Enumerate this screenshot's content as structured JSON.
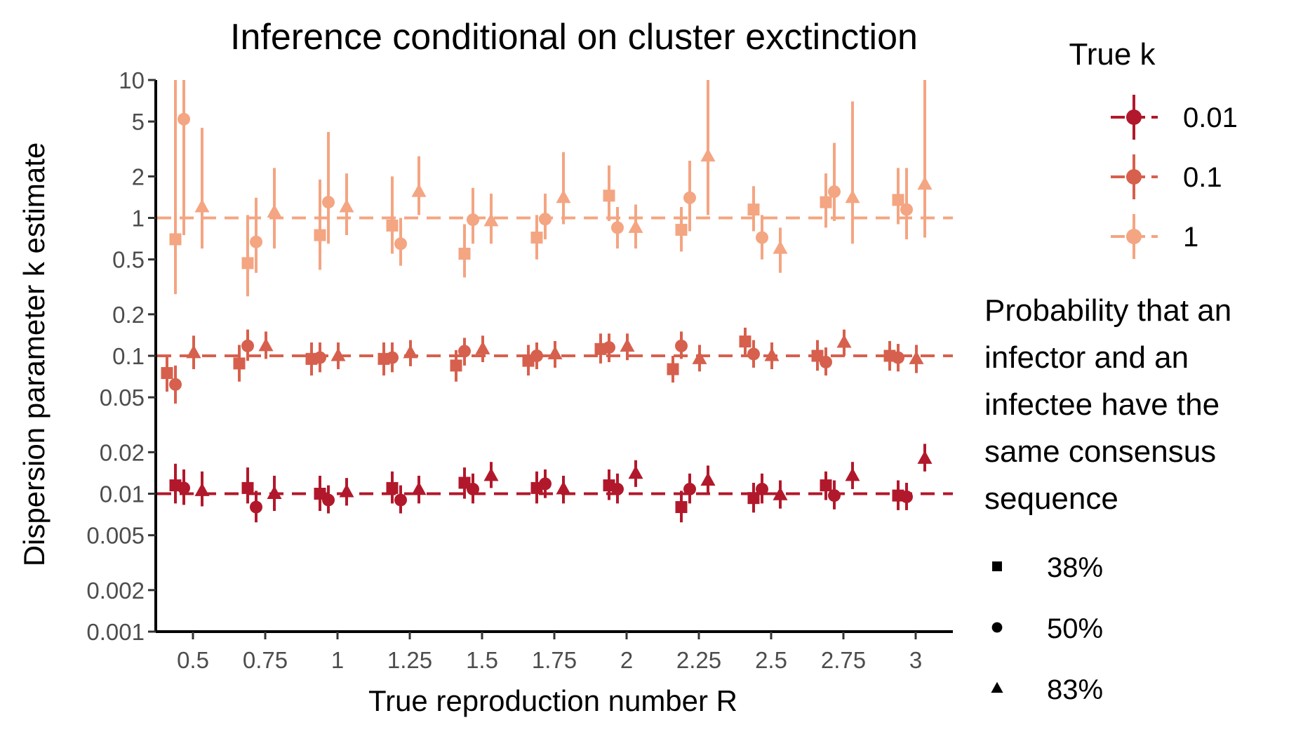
{
  "chart_data": {
    "type": "scatter",
    "title": "Inference conditional on cluster exctinction",
    "xlabel": "True reproduction number R",
    "ylabel": "Dispersion parameter k estimate",
    "y_scale": "log",
    "ylim": [
      0.001,
      10
    ],
    "y_ticks": [
      0.001,
      0.002,
      0.005,
      0.01,
      0.02,
      0.05,
      0.1,
      0.2,
      0.5,
      1,
      2,
      5,
      10
    ],
    "y_tick_labels": [
      "0.001",
      "0.002",
      "0.005",
      "0.01",
      "0.02",
      "0.05",
      "0.1",
      "0.2",
      "0.5",
      "1",
      "2",
      "5",
      "10"
    ],
    "x_ticks": [
      0.5,
      0.75,
      1,
      1.25,
      1.5,
      1.75,
      2,
      2.25,
      2.5,
      2.75,
      3
    ],
    "x_tick_labels": [
      "0.5",
      "0.75",
      "1",
      "1.25",
      "1.5",
      "1.75",
      "2",
      "2.25",
      "2.5",
      "2.75",
      "3"
    ],
    "grid": false,
    "reference_lines": [
      0.01,
      0.1,
      1
    ],
    "legend_color": {
      "title": "True k",
      "placement": "right",
      "entries": [
        {
          "label": "0.01",
          "color": "#b2182b"
        },
        {
          "label": "0.1",
          "color": "#d6604d"
        },
        {
          "label": "1",
          "color": "#f4a582"
        }
      ]
    },
    "legend_shape": {
      "title_lines": [
        "Probability that an",
        "infector and an",
        "infectee have the",
        "same consensus",
        "sequence"
      ],
      "placement": "right",
      "entries": [
        {
          "label": "38%",
          "shape": "square"
        },
        {
          "label": "50%",
          "shape": "circle"
        },
        {
          "label": "83%",
          "shape": "triangle"
        }
      ]
    },
    "series": [
      {
        "true_k": 0.01,
        "color": "#b2182b",
        "points": [
          {
            "R": 0.5,
            "p": "38%",
            "est": 0.0115,
            "lo": 0.0085,
            "hi": 0.0165
          },
          {
            "R": 0.5,
            "p": "50%",
            "est": 0.011,
            "lo": 0.0083,
            "hi": 0.015
          },
          {
            "R": 0.5,
            "p": "83%",
            "est": 0.0105,
            "lo": 0.0081,
            "hi": 0.0145
          },
          {
            "R": 0.75,
            "p": "38%",
            "est": 0.011,
            "lo": 0.0085,
            "hi": 0.0155
          },
          {
            "R": 0.75,
            "p": "50%",
            "est": 0.008,
            "lo": 0.0062,
            "hi": 0.0105
          },
          {
            "R": 0.75,
            "p": "83%",
            "est": 0.01,
            "lo": 0.0075,
            "hi": 0.0135
          },
          {
            "R": 1,
            "p": "38%",
            "est": 0.01,
            "lo": 0.0075,
            "hi": 0.0135
          },
          {
            "R": 1,
            "p": "50%",
            "est": 0.009,
            "lo": 0.0072,
            "hi": 0.0115
          },
          {
            "R": 1,
            "p": "83%",
            "est": 0.0103,
            "lo": 0.0082,
            "hi": 0.013
          },
          {
            "R": 1.25,
            "p": "38%",
            "est": 0.011,
            "lo": 0.0085,
            "hi": 0.0145
          },
          {
            "R": 1.25,
            "p": "50%",
            "est": 0.009,
            "lo": 0.0072,
            "hi": 0.0115
          },
          {
            "R": 1.25,
            "p": "83%",
            "est": 0.0107,
            "lo": 0.0085,
            "hi": 0.0135
          },
          {
            "R": 1.5,
            "p": "38%",
            "est": 0.012,
            "lo": 0.0092,
            "hi": 0.0155
          },
          {
            "R": 1.5,
            "p": "50%",
            "est": 0.0108,
            "lo": 0.0085,
            "hi": 0.014
          },
          {
            "R": 1.5,
            "p": "83%",
            "est": 0.0135,
            "lo": 0.011,
            "hi": 0.017
          },
          {
            "R": 1.75,
            "p": "38%",
            "est": 0.011,
            "lo": 0.0085,
            "hi": 0.0145
          },
          {
            "R": 1.75,
            "p": "50%",
            "est": 0.0118,
            "lo": 0.0093,
            "hi": 0.015
          },
          {
            "R": 1.75,
            "p": "83%",
            "est": 0.0108,
            "lo": 0.0085,
            "hi": 0.0135
          },
          {
            "R": 2,
            "p": "38%",
            "est": 0.0115,
            "lo": 0.009,
            "hi": 0.015
          },
          {
            "R": 2,
            "p": "50%",
            "est": 0.0108,
            "lo": 0.0085,
            "hi": 0.014
          },
          {
            "R": 2,
            "p": "83%",
            "est": 0.014,
            "lo": 0.0112,
            "hi": 0.0175
          },
          {
            "R": 2.25,
            "p": "38%",
            "est": 0.008,
            "lo": 0.0062,
            "hi": 0.0105
          },
          {
            "R": 2.25,
            "p": "50%",
            "est": 0.0108,
            "lo": 0.0085,
            "hi": 0.014
          },
          {
            "R": 2.25,
            "p": "83%",
            "est": 0.0125,
            "lo": 0.01,
            "hi": 0.016
          },
          {
            "R": 2.5,
            "p": "38%",
            "est": 0.0093,
            "lo": 0.0073,
            "hi": 0.012
          },
          {
            "R": 2.5,
            "p": "50%",
            "est": 0.0108,
            "lo": 0.0085,
            "hi": 0.014
          },
          {
            "R": 2.5,
            "p": "83%",
            "est": 0.0098,
            "lo": 0.0078,
            "hi": 0.0125
          },
          {
            "R": 2.75,
            "p": "38%",
            "est": 0.0115,
            "lo": 0.009,
            "hi": 0.0145
          },
          {
            "R": 2.75,
            "p": "50%",
            "est": 0.0097,
            "lo": 0.0077,
            "hi": 0.0125
          },
          {
            "R": 2.75,
            "p": "83%",
            "est": 0.0135,
            "lo": 0.0108,
            "hi": 0.017
          },
          {
            "R": 3,
            "p": "38%",
            "est": 0.0097,
            "lo": 0.0076,
            "hi": 0.0125
          },
          {
            "R": 3,
            "p": "50%",
            "est": 0.0095,
            "lo": 0.0076,
            "hi": 0.012
          },
          {
            "R": 3,
            "p": "83%",
            "est": 0.018,
            "lo": 0.0145,
            "hi": 0.023
          }
        ]
      },
      {
        "true_k": 0.1,
        "color": "#d6604d",
        "points": [
          {
            "R": 0.5,
            "p": "38%",
            "est": 0.075,
            "lo": 0.055,
            "hi": 0.1
          },
          {
            "R": 0.5,
            "p": "50%",
            "est": 0.062,
            "lo": 0.045,
            "hi": 0.085
          },
          {
            "R": 0.5,
            "p": "83%",
            "est": 0.105,
            "lo": 0.08,
            "hi": 0.14
          },
          {
            "R": 0.75,
            "p": "38%",
            "est": 0.088,
            "lo": 0.065,
            "hi": 0.12
          },
          {
            "R": 0.75,
            "p": "50%",
            "est": 0.118,
            "lo": 0.092,
            "hi": 0.155
          },
          {
            "R": 0.75,
            "p": "83%",
            "est": 0.118,
            "lo": 0.095,
            "hi": 0.15
          },
          {
            "R": 1,
            "p": "38%",
            "est": 0.095,
            "lo": 0.072,
            "hi": 0.125
          },
          {
            "R": 1,
            "p": "50%",
            "est": 0.097,
            "lo": 0.076,
            "hi": 0.125
          },
          {
            "R": 1,
            "p": "83%",
            "est": 0.1,
            "lo": 0.08,
            "hi": 0.125
          },
          {
            "R": 1.25,
            "p": "38%",
            "est": 0.095,
            "lo": 0.072,
            "hi": 0.125
          },
          {
            "R": 1.25,
            "p": "50%",
            "est": 0.097,
            "lo": 0.076,
            "hi": 0.125
          },
          {
            "R": 1.25,
            "p": "83%",
            "est": 0.105,
            "lo": 0.084,
            "hi": 0.13
          },
          {
            "R": 1.5,
            "p": "38%",
            "est": 0.085,
            "lo": 0.065,
            "hi": 0.11
          },
          {
            "R": 1.5,
            "p": "50%",
            "est": 0.108,
            "lo": 0.085,
            "hi": 0.135
          },
          {
            "R": 1.5,
            "p": "83%",
            "est": 0.112,
            "lo": 0.09,
            "hi": 0.14
          },
          {
            "R": 1.75,
            "p": "38%",
            "est": 0.092,
            "lo": 0.072,
            "hi": 0.12
          },
          {
            "R": 1.75,
            "p": "50%",
            "est": 0.1,
            "lo": 0.08,
            "hi": 0.125
          },
          {
            "R": 1.75,
            "p": "83%",
            "est": 0.103,
            "lo": 0.082,
            "hi": 0.128
          },
          {
            "R": 2,
            "p": "38%",
            "est": 0.112,
            "lo": 0.088,
            "hi": 0.145
          },
          {
            "R": 2,
            "p": "50%",
            "est": 0.115,
            "lo": 0.09,
            "hi": 0.145
          },
          {
            "R": 2,
            "p": "83%",
            "est": 0.117,
            "lo": 0.093,
            "hi": 0.145
          },
          {
            "R": 2.25,
            "p": "38%",
            "est": 0.08,
            "lo": 0.064,
            "hi": 0.1
          },
          {
            "R": 2.25,
            "p": "50%",
            "est": 0.118,
            "lo": 0.095,
            "hi": 0.15
          },
          {
            "R": 2.25,
            "p": "83%",
            "est": 0.095,
            "lo": 0.077,
            "hi": 0.12
          },
          {
            "R": 2.5,
            "p": "38%",
            "est": 0.127,
            "lo": 0.1,
            "hi": 0.16
          },
          {
            "R": 2.5,
            "p": "50%",
            "est": 0.103,
            "lo": 0.082,
            "hi": 0.13
          },
          {
            "R": 2.5,
            "p": "83%",
            "est": 0.1,
            "lo": 0.08,
            "hi": 0.125
          },
          {
            "R": 2.75,
            "p": "38%",
            "est": 0.1,
            "lo": 0.078,
            "hi": 0.13
          },
          {
            "R": 2.75,
            "p": "50%",
            "est": 0.09,
            "lo": 0.072,
            "hi": 0.115
          },
          {
            "R": 2.75,
            "p": "83%",
            "est": 0.125,
            "lo": 0.1,
            "hi": 0.155
          },
          {
            "R": 3,
            "p": "38%",
            "est": 0.1,
            "lo": 0.078,
            "hi": 0.128
          },
          {
            "R": 3,
            "p": "50%",
            "est": 0.097,
            "lo": 0.077,
            "hi": 0.122
          },
          {
            "R": 3,
            "p": "83%",
            "est": 0.095,
            "lo": 0.075,
            "hi": 0.12
          }
        ]
      },
      {
        "true_k": 1,
        "color": "#f4a582",
        "points": [
          {
            "R": 0.5,
            "p": "38%",
            "est": 0.7,
            "lo": 0.28,
            "hi": 10
          },
          {
            "R": 0.5,
            "p": "50%",
            "est": 5.2,
            "lo": 0.75,
            "hi": 10
          },
          {
            "R": 0.5,
            "p": "83%",
            "est": 1.2,
            "lo": 0.6,
            "hi": 4.5
          },
          {
            "R": 0.75,
            "p": "38%",
            "est": 0.47,
            "lo": 0.27,
            "hi": 1.05
          },
          {
            "R": 0.75,
            "p": "50%",
            "est": 0.67,
            "lo": 0.4,
            "hi": 1.4
          },
          {
            "R": 0.75,
            "p": "83%",
            "est": 1.1,
            "lo": 0.6,
            "hi": 2.3
          },
          {
            "R": 1,
            "p": "38%",
            "est": 0.75,
            "lo": 0.42,
            "hi": 1.9
          },
          {
            "R": 1,
            "p": "50%",
            "est": 1.3,
            "lo": 0.65,
            "hi": 4.2
          },
          {
            "R": 1,
            "p": "83%",
            "est": 1.2,
            "lo": 0.75,
            "hi": 2.1
          },
          {
            "R": 1.25,
            "p": "38%",
            "est": 0.88,
            "lo": 0.55,
            "hi": 2.0
          },
          {
            "R": 1.25,
            "p": "50%",
            "est": 0.65,
            "lo": 0.45,
            "hi": 1.0
          },
          {
            "R": 1.25,
            "p": "83%",
            "est": 1.55,
            "lo": 1.05,
            "hi": 2.8
          },
          {
            "R": 1.5,
            "p": "38%",
            "est": 0.55,
            "lo": 0.37,
            "hi": 0.9
          },
          {
            "R": 1.5,
            "p": "50%",
            "est": 0.97,
            "lo": 0.65,
            "hi": 1.65
          },
          {
            "R": 1.5,
            "p": "83%",
            "est": 0.95,
            "lo": 0.65,
            "hi": 1.5
          },
          {
            "R": 1.75,
            "p": "38%",
            "est": 0.72,
            "lo": 0.5,
            "hi": 1.05
          },
          {
            "R": 1.75,
            "p": "50%",
            "est": 0.98,
            "lo": 0.7,
            "hi": 1.5
          },
          {
            "R": 1.75,
            "p": "83%",
            "est": 1.4,
            "lo": 0.9,
            "hi": 3.0
          },
          {
            "R": 2,
            "p": "38%",
            "est": 1.45,
            "lo": 0.95,
            "hi": 2.4
          },
          {
            "R": 2,
            "p": "50%",
            "est": 0.85,
            "lo": 0.6,
            "hi": 1.2
          },
          {
            "R": 2,
            "p": "83%",
            "est": 0.85,
            "lo": 0.6,
            "hi": 1.25
          },
          {
            "R": 2.25,
            "p": "38%",
            "est": 0.82,
            "lo": 0.57,
            "hi": 1.2
          },
          {
            "R": 2.25,
            "p": "50%",
            "est": 1.4,
            "lo": 0.8,
            "hi": 2.6
          },
          {
            "R": 2.25,
            "p": "83%",
            "est": 2.8,
            "lo": 1.05,
            "hi": 10
          },
          {
            "R": 2.5,
            "p": "38%",
            "est": 1.15,
            "lo": 0.8,
            "hi": 1.7
          },
          {
            "R": 2.5,
            "p": "50%",
            "est": 0.72,
            "lo": 0.5,
            "hi": 1.05
          },
          {
            "R": 2.5,
            "p": "83%",
            "est": 0.6,
            "lo": 0.4,
            "hi": 0.85
          },
          {
            "R": 2.75,
            "p": "38%",
            "est": 1.3,
            "lo": 0.85,
            "hi": 2.1
          },
          {
            "R": 2.75,
            "p": "50%",
            "est": 1.55,
            "lo": 0.95,
            "hi": 3.5
          },
          {
            "R": 2.75,
            "p": "83%",
            "est": 1.4,
            "lo": 0.65,
            "hi": 7.0
          },
          {
            "R": 3,
            "p": "38%",
            "est": 1.35,
            "lo": 0.9,
            "hi": 2.3
          },
          {
            "R": 3,
            "p": "50%",
            "est": 1.15,
            "lo": 0.7,
            "hi": 2.3
          },
          {
            "R": 3,
            "p": "83%",
            "est": 1.75,
            "lo": 0.72,
            "hi": 10
          }
        ]
      }
    ]
  }
}
